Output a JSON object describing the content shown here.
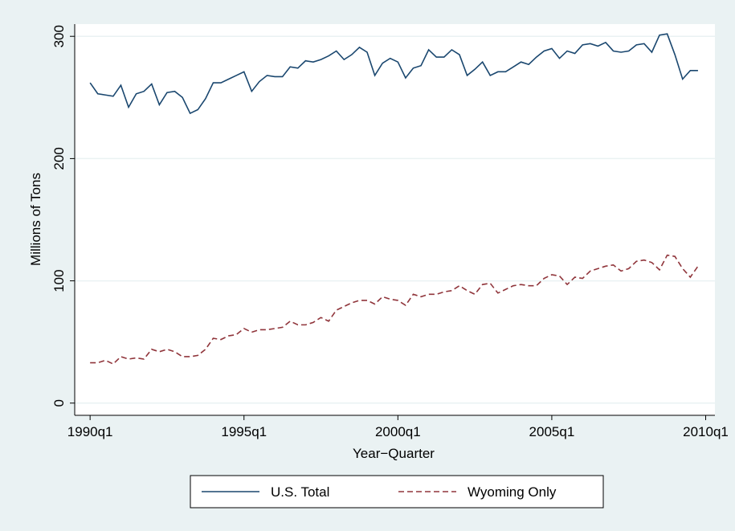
{
  "chart_data": {
    "type": "line",
    "x_label": "Year−Quarter",
    "y_label": "Millions of Tons",
    "x": [
      1990,
      1990.25,
      1990.5,
      1990.75,
      1991,
      1991.25,
      1991.5,
      1991.75,
      1992,
      1992.25,
      1992.5,
      1992.75,
      1993,
      1993.25,
      1993.5,
      1993.75,
      1994,
      1994.25,
      1994.5,
      1994.75,
      1995,
      1995.25,
      1995.5,
      1995.75,
      1996,
      1996.25,
      1996.5,
      1996.75,
      1997,
      1997.25,
      1997.5,
      1997.75,
      1998,
      1998.25,
      1998.5,
      1998.75,
      1999,
      1999.25,
      1999.5,
      1999.75,
      2000,
      2000.25,
      2000.5,
      2000.75,
      2001,
      2001.25,
      2001.5,
      2001.75,
      2002,
      2002.25,
      2002.5,
      2002.75,
      2003,
      2003.25,
      2003.5,
      2003.75,
      2004,
      2004.25,
      2004.5,
      2004.75,
      2005,
      2005.25,
      2005.5,
      2005.75,
      2006,
      2006.25,
      2006.5,
      2006.75,
      2007,
      2007.25,
      2007.5,
      2007.75,
      2008,
      2008.25,
      2008.5,
      2008.75,
      2009,
      2009.25,
      2009.5,
      2009.75
    ],
    "series": [
      {
        "name": "U.S. Total",
        "color": "#1a476f",
        "dash": false,
        "values": [
          262,
          253,
          252,
          251,
          260,
          242,
          253,
          255,
          261,
          244,
          254,
          255,
          250,
          237,
          240,
          249,
          262,
          262,
          265,
          268,
          271,
          255,
          263,
          268,
          267,
          267,
          275,
          274,
          280,
          279,
          281,
          284,
          288,
          281,
          285,
          291,
          287,
          268,
          278,
          282,
          279,
          266,
          274,
          276,
          289,
          283,
          283,
          289,
          285,
          268,
          273,
          279,
          268,
          271,
          271,
          275,
          279,
          277,
          283,
          288,
          290,
          282,
          288,
          286,
          293,
          294,
          292,
          295,
          288,
          287,
          288,
          293,
          294,
          287,
          301,
          302,
          285,
          265,
          272,
          272
        ]
      },
      {
        "name": "Wyoming Only",
        "color": "#90353b",
        "dash": true,
        "values": [
          33,
          33,
          35,
          32,
          38,
          36,
          37,
          36,
          44,
          42,
          44,
          42,
          38,
          38,
          39,
          44,
          53,
          52,
          55,
          56,
          61,
          58,
          60,
          60,
          61,
          62,
          67,
          64,
          64,
          66,
          70,
          67,
          76,
          79,
          82,
          84,
          84,
          81,
          87,
          85,
          84,
          80,
          89,
          87,
          89,
          89,
          91,
          92,
          96,
          92,
          89,
          97,
          98,
          90,
          93,
          96,
          97,
          96,
          96,
          102,
          105,
          104,
          97,
          103,
          102,
          108,
          110,
          112,
          113,
          108,
          110,
          116,
          117,
          115,
          109,
          121,
          120,
          110,
          103,
          112
        ]
      }
    ],
    "xlim": [
      1989.5,
      2010.3
    ],
    "xticks": [
      {
        "value": 1990,
        "label": "1990q1"
      },
      {
        "value": 1995,
        "label": "1995q1"
      },
      {
        "value": 2000,
        "label": "2000q1"
      },
      {
        "value": 2005,
        "label": "2005q1"
      },
      {
        "value": 2010,
        "label": "2010q1"
      }
    ],
    "ylim": [
      -10,
      310
    ],
    "yticks": [
      0,
      100,
      200,
      300
    ],
    "grid": true,
    "legend": "bottom"
  }
}
